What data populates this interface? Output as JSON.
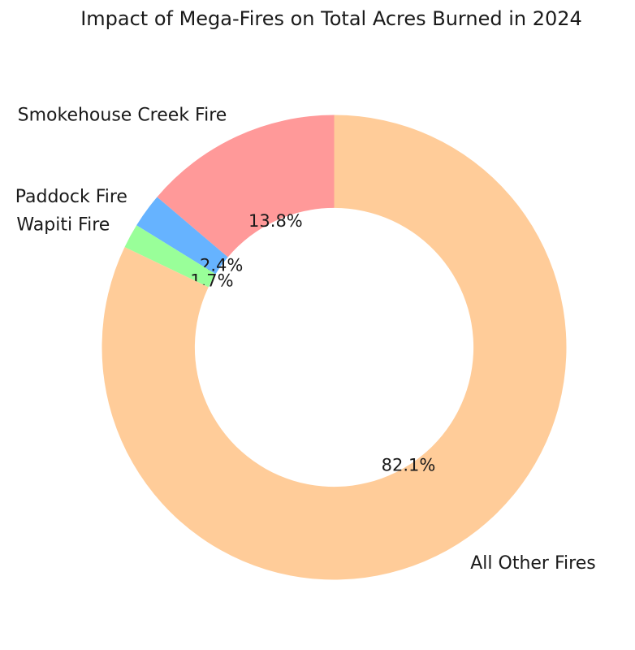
{
  "chart_data": {
    "type": "pie",
    "title": "Impact of Mega-Fires on Total Acres Burned in 2024",
    "labels": [
      "Smokehouse Creek Fire",
      "Paddock Fire",
      "Wapiti Fire",
      "All Other Fires"
    ],
    "values": [
      13.8,
      2.4,
      1.7,
      82.1
    ],
    "pct_labels": [
      "13.8%",
      "2.4%",
      "1.7%",
      "82.1%"
    ],
    "colors": [
      "#ff9999",
      "#66b3ff",
      "#99ff99",
      "#ffcc99"
    ],
    "start_angle_deg": 90,
    "direction": "counterclockwise",
    "donut_hole_ratio": 0.6,
    "label_distance_ratio": 1.1,
    "pct_distance_ratio": 0.6,
    "legend": "none",
    "background_color": "#ffffff",
    "text_color": "#1a1a1a"
  }
}
